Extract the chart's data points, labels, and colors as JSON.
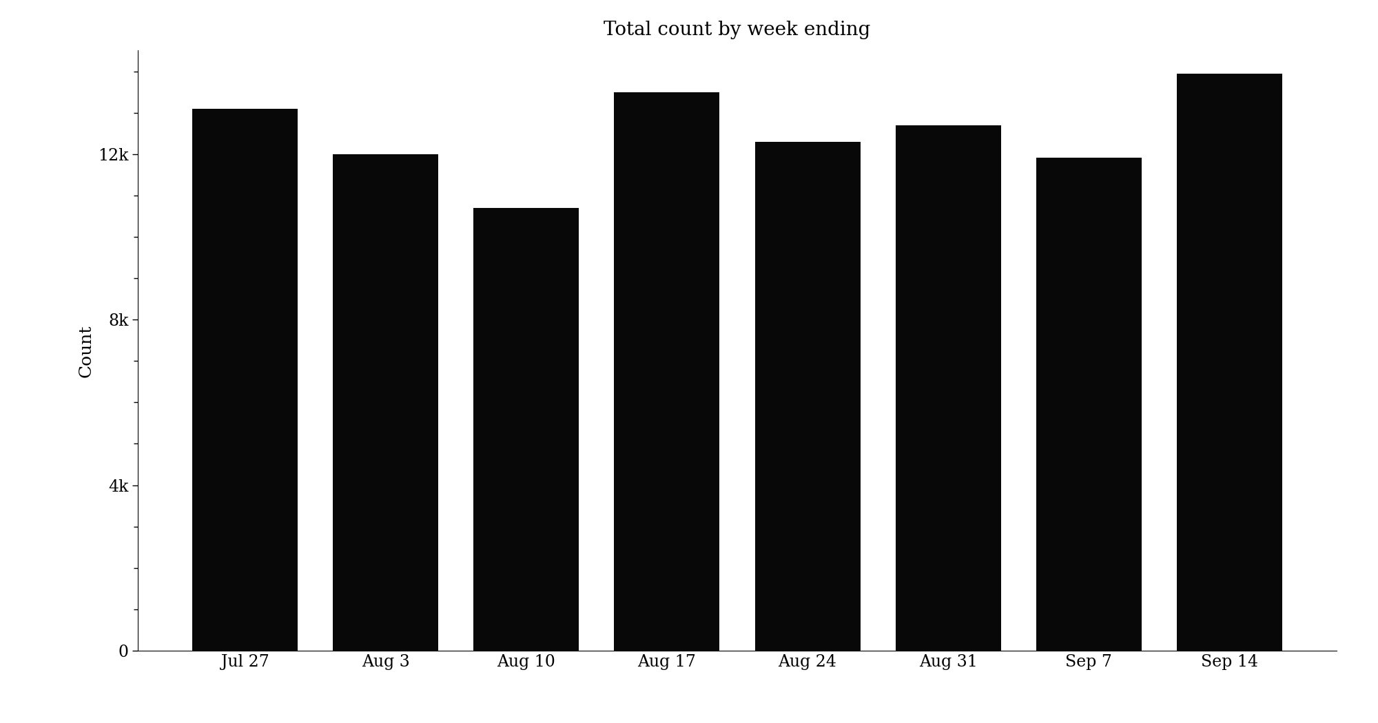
{
  "categories": [
    "Jul 27",
    "Aug 3",
    "Aug 10",
    "Aug 17",
    "Aug 24",
    "Aug 31",
    "Sep 7",
    "Sep 14"
  ],
  "values": [
    13100,
    12000,
    10700,
    13500,
    12300,
    12700,
    11910,
    13935
  ],
  "bar_color": "#080808",
  "title": "Total count by week ending",
  "ylabel": "Count",
  "ylim": [
    0,
    14500
  ],
  "yticks": [
    0,
    4000,
    8000,
    12000
  ],
  "ytick_labels": [
    "0",
    "4k",
    "8k",
    "12k"
  ],
  "title_fontsize": 20,
  "label_fontsize": 18,
  "tick_fontsize": 17,
  "background_color": "#ffffff",
  "bar_width": 0.75,
  "font_family": "DejaVu Serif"
}
